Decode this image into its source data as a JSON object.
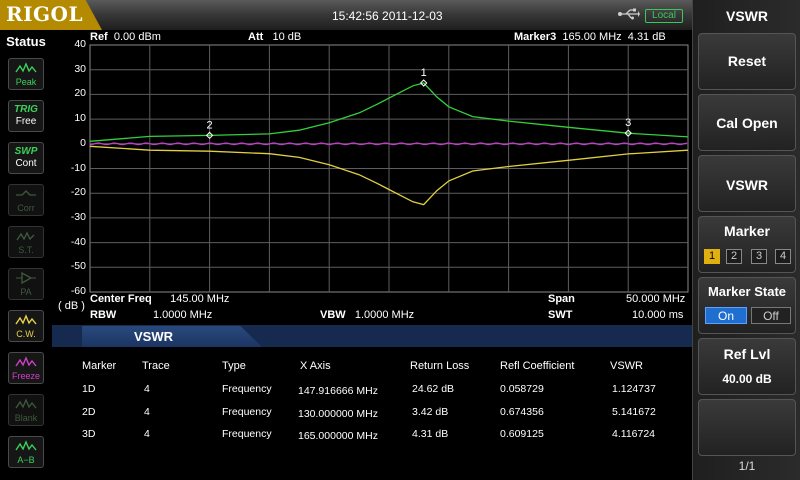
{
  "header": {
    "logo": "RIGOL",
    "datetime": "15:42:56 2011-12-03",
    "usb_icon": "usb-icon",
    "local_label": "Local"
  },
  "status": {
    "title": "Status",
    "buttons": [
      {
        "icon": "peak-icon",
        "label": "Peak",
        "color": "#3bd15a",
        "active": true
      },
      {
        "icon": "trig-icon",
        "label_top": "TRIG",
        "label": "Free",
        "color": "#3bd15a",
        "active": true
      },
      {
        "icon": "swp-icon",
        "label_top": "SWP",
        "label": "Cont",
        "color": "#3bd15a",
        "active": true
      },
      {
        "icon": "corr-icon",
        "label": "Corr",
        "active": false
      },
      {
        "icon": "st-icon",
        "label": "S.T.",
        "active": false
      },
      {
        "icon": "pa-icon",
        "label": "PA",
        "active": false
      },
      {
        "icon": "cw-icon",
        "label": "C.W.",
        "color": "#e8d44a",
        "active": true
      },
      {
        "icon": "freeze-icon",
        "label": "Freeze",
        "color": "#d040c8",
        "active": true
      },
      {
        "icon": "blank-icon",
        "label": "Blank",
        "active": false
      },
      {
        "icon": "a-minus-b-icon",
        "label": "A−B",
        "color": "#3bd15a",
        "active": true
      }
    ]
  },
  "graph": {
    "ref_label": "Ref",
    "ref_value": "0.00 dBm",
    "att_label": "Att",
    "att_value": "10 dB",
    "marker_label": "Marker3",
    "marker_freq": "165.00 MHz",
    "marker_value": "4.31 dB",
    "y_unit": "( dB )",
    "y_ticks": [
      "40",
      "30",
      "20",
      "10",
      "0",
      "-10",
      "-20",
      "-30",
      "-40",
      "-50",
      "-60"
    ],
    "center_label": "Center Freq",
    "center_value": "145.00 MHz",
    "span_label": "Span",
    "span_value": "50.000 MHz",
    "rbw_label": "RBW",
    "rbw_value": "1.0000 MHz",
    "vbw_label": "VBW",
    "vbw_value": "1.0000 MHz",
    "swt_label": "SWT",
    "swt_value": "10.000 ms",
    "marker_labels": [
      "1",
      "2",
      "3"
    ]
  },
  "chart_data": {
    "type": "line",
    "xlim": [
      120,
      170
    ],
    "ylim": [
      -60,
      40
    ],
    "x_unit": "MHz",
    "y_unit": "dB",
    "grid": true,
    "series": [
      {
        "color": "#33d03a",
        "x": [
          120,
          125,
          130,
          135,
          137.5,
          140,
          142.5,
          144,
          145,
          146,
          147,
          147.9,
          149,
          150,
          152,
          155,
          160,
          165,
          170
        ],
        "y": [
          1,
          3,
          3.42,
          4,
          5.5,
          8.5,
          12.5,
          16,
          18.5,
          21,
          23.5,
          24.62,
          19,
          15,
          11,
          9.2,
          6.7,
          4.31,
          2.8
        ]
      },
      {
        "color": "#e0d040",
        "x": [
          120,
          125,
          130,
          135,
          137.5,
          140,
          142.5,
          144,
          145,
          146,
          147,
          147.9,
          149,
          150,
          152,
          155,
          160,
          165,
          170
        ],
        "y": [
          -1,
          -2.6,
          -3,
          -4,
          -5.5,
          -8.5,
          -12.5,
          -16,
          -18.5,
          -21,
          -23.5,
          -24.62,
          -19,
          -15,
          -11,
          -9.2,
          -6.7,
          -4.1,
          -2.6
        ]
      },
      {
        "color": "#c040c8",
        "x": [
          120,
          170
        ],
        "y": [
          0,
          0
        ]
      }
    ],
    "markers": [
      {
        "label": "1",
        "x": 147.9,
        "y": 24.62
      },
      {
        "label": "2",
        "x": 130,
        "y": 3.42
      },
      {
        "label": "3",
        "x": 165,
        "y": 4.31
      }
    ]
  },
  "panel": {
    "tab_title": "VSWR",
    "columns": [
      "Marker",
      "Trace",
      "Type",
      "X Axis",
      "Return Loss",
      "Refl Coefficient",
      "VSWR"
    ],
    "rows": [
      [
        "1D",
        "4",
        "Frequency",
        "147.916666 MHz",
        "24.62 dB",
        "0.058729",
        "1.124737"
      ],
      [
        "2D",
        "4",
        "Frequency",
        "130.000000 MHz",
        "3.42 dB",
        "0.674356",
        "5.141672"
      ],
      [
        "3D",
        "4",
        "Frequency",
        "165.000000 MHz",
        "4.31 dB",
        "0.609125",
        "4.116724"
      ]
    ]
  },
  "menu": {
    "title": "VSWR",
    "reset": "Reset",
    "cal_open": "Cal Open",
    "vswr": "VSWR",
    "marker": "Marker",
    "marker_numbers": [
      "1",
      "2",
      "3",
      "4"
    ],
    "marker_selected": "1",
    "marker_state": "Marker State",
    "on": "On",
    "off": "Off",
    "ref_lvl": "Ref Lvl",
    "ref_lvl_value": "40.00 dB",
    "page": "1/1"
  }
}
